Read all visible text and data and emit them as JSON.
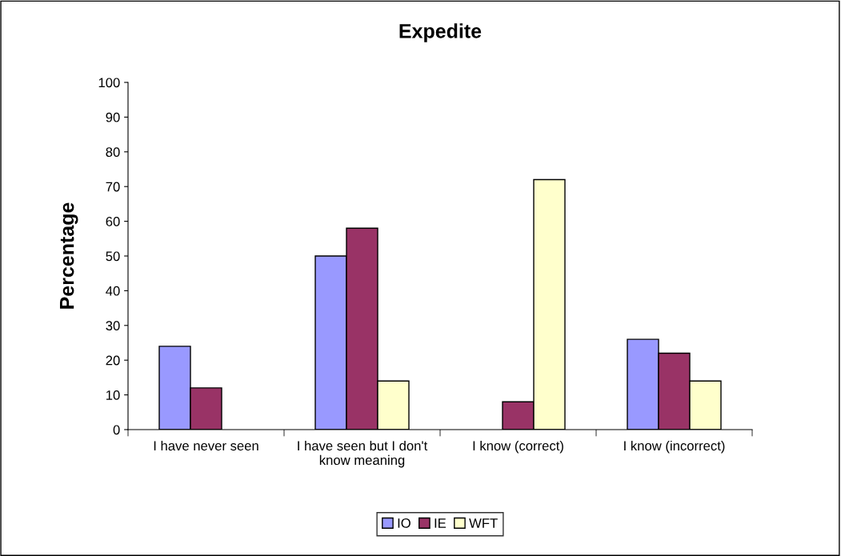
{
  "chart_data": {
    "type": "bar",
    "title": "Expedite",
    "ylabel": "Percentage",
    "categories": [
      "I have never seen",
      "I have seen but I don't know meaning",
      "I know (correct)",
      "I know (incorrect)"
    ],
    "series": [
      {
        "name": "IO",
        "color": "#9999ff",
        "values": [
          24,
          50,
          null,
          26
        ]
      },
      {
        "name": "IE",
        "color": "#993366",
        "values": [
          12,
          58,
          8,
          22
        ]
      },
      {
        "name": "WFT",
        "color": "#ffffcc",
        "values": [
          null,
          14,
          72,
          14
        ]
      }
    ],
    "ylim": [
      0,
      100
    ],
    "yticks": [
      0,
      10,
      20,
      30,
      40,
      50,
      60,
      70,
      80,
      90,
      100
    ],
    "grid": false,
    "legend": "bottom"
  }
}
